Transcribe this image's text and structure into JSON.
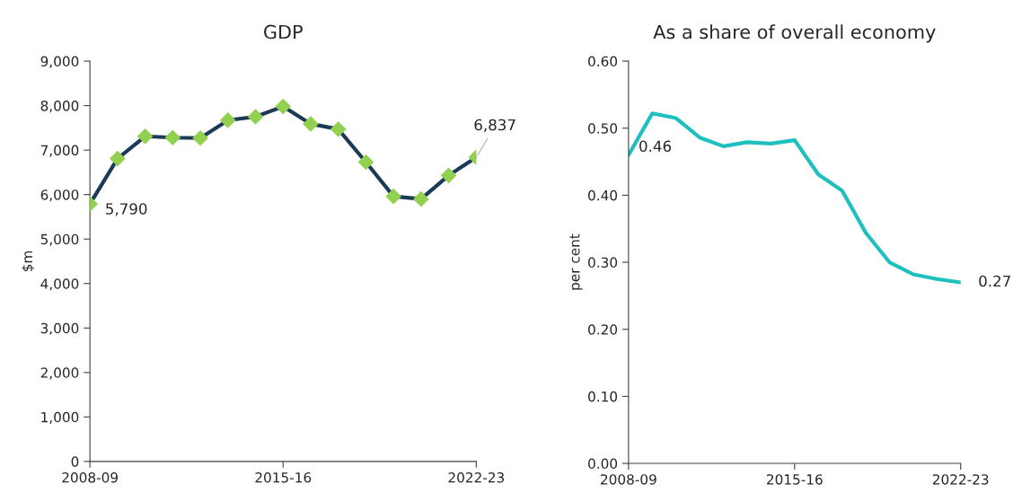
{
  "chart_data": [
    {
      "type": "line",
      "title": "GDP",
      "ylabel": "$m",
      "categories": [
        "2008-09",
        null,
        null,
        null,
        null,
        null,
        null,
        "2015-16",
        null,
        null,
        null,
        null,
        null,
        null,
        "2022-23"
      ],
      "series": [
        {
          "color": "#1b3a57",
          "colors": [
            "#92d050",
            "#92d050",
            "#92d050",
            "#92d050",
            "#92d050",
            "#92d050",
            "#92d050",
            "#92d050",
            "#92d050",
            "#92d050",
            "#92d050",
            "#92d050",
            "#92d050",
            "#92d050",
            "#92d050"
          ],
          "values": [
            5790,
            6810,
            7310,
            7280,
            7270,
            7670,
            7750,
            7980,
            7590,
            7470,
            6730,
            5960,
            5900,
            6430,
            6837
          ],
          "value_labels": [
            "5,790",
            null,
            null,
            null,
            null,
            null,
            null,
            null,
            null,
            null,
            null,
            null,
            null,
            null,
            "6,837"
          ]
        }
      ],
      "ylim": [
        0,
        9000
      ],
      "yticks": [
        0,
        {
          "value": 1000,
          "label": "1,000"
        },
        {
          "value": 2000,
          "label": "2,000"
        },
        {
          "value": 3000,
          "label": "3,000"
        },
        {
          "value": 4000,
          "label": "4,000"
        },
        {
          "value": 5000,
          "label": "5,000"
        },
        {
          "value": 6000,
          "label": "6,000"
        },
        {
          "value": 7000,
          "label": "7,000"
        },
        {
          "value": 8000,
          "label": "8,000"
        },
        {
          "value": 9000,
          "label": "9,000"
        }
      ],
      "marker": "diamond",
      "grid": false,
      "legend": false
    },
    {
      "type": "line",
      "title": "As a share of overall economy",
      "ylabel": "per cent",
      "categories": [
        "2008-09",
        null,
        null,
        null,
        null,
        null,
        null,
        "2015-16",
        null,
        null,
        null,
        null,
        null,
        null,
        "2022-23"
      ],
      "series": [
        {
          "color": "#1fbfbf",
          "values": [
            0.46,
            0.522,
            0.515,
            0.486,
            0.473,
            0.479,
            0.477,
            0.482,
            0.431,
            0.407,
            0.344,
            0.3,
            0.282,
            0.275,
            0.27
          ],
          "value_labels": [
            "0.46",
            null,
            null,
            null,
            null,
            null,
            null,
            null,
            null,
            null,
            null,
            null,
            null,
            null,
            "0.27"
          ]
        }
      ],
      "ylim": [
        0,
        0.6
      ],
      "yticks": [
        {
          "value": 0,
          "label": "0.00"
        },
        {
          "value": 0.1,
          "label": "0.10"
        },
        {
          "value": 0.2,
          "label": "0.20"
        },
        {
          "value": 0.3,
          "label": "0.30"
        },
        {
          "value": 0.4,
          "label": "0.40"
        },
        {
          "value": 0.5,
          "label": "0.50"
        },
        {
          "value": 0.6,
          "label": "0.60"
        }
      ],
      "marker": "none",
      "grid": false,
      "legend": false
    }
  ]
}
